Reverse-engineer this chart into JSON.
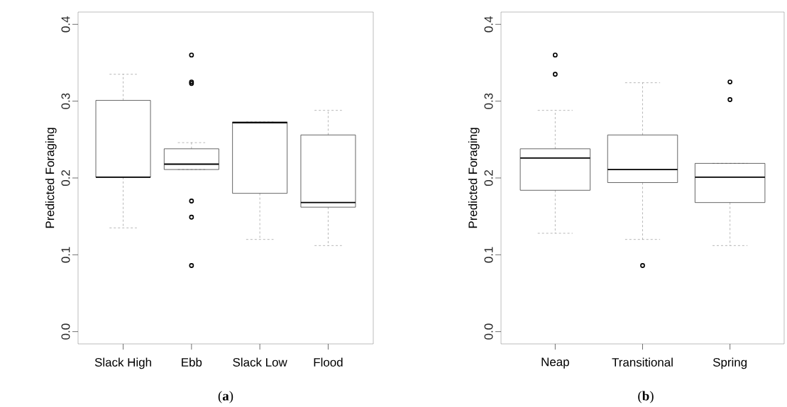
{
  "chart_data": [
    {
      "type": "box",
      "ylabel": "Predicted Foraging",
      "categories": [
        "Slack High",
        "Ebb",
        "Slack Low",
        "Flood"
      ],
      "boxes": [
        {
          "low": 0.135,
          "q1": 0.201,
          "median": 0.201,
          "q3": 0.301,
          "high": 0.335
        },
        {
          "low": 0.211,
          "q1": 0.211,
          "median": 0.218,
          "q3": 0.238,
          "high": 0.246,
          "outliers": [
            0.36,
            0.325,
            0.323,
            0.17,
            0.149,
            0.086
          ]
        },
        {
          "low": 0.12,
          "q1": 0.18,
          "median": 0.272,
          "q3": 0.273,
          "high": 0.273
        },
        {
          "low": 0.112,
          "q1": 0.162,
          "median": 0.168,
          "q3": 0.256,
          "high": 0.288
        }
      ],
      "ylim": [
        -0.016,
        0.416
      ],
      "yticks": [
        {
          "value": 0,
          "label": "0.0"
        },
        0.1,
        0.2,
        0.3,
        0.4
      ],
      "marker": "circle",
      "annotations": [
        "(**a**)"
      ]
    },
    {
      "type": "box",
      "ylabel": "Predicted Foraging",
      "categories": [
        "Neap",
        "Transitional",
        "Spring"
      ],
      "boxes": [
        {
          "low": 0.128,
          "q1": 0.184,
          "median": 0.226,
          "q3": 0.238,
          "high": 0.288,
          "outliers": [
            0.36,
            0.335
          ]
        },
        {
          "low": 0.12,
          "q1": 0.194,
          "median": 0.211,
          "q3": 0.256,
          "high": 0.324,
          "outliers": [
            0.086
          ]
        },
        {
          "low": 0.112,
          "q1": 0.168,
          "median": 0.201,
          "q3": 0.219,
          "high": 0.219,
          "outliers": [
            0.325,
            0.302
          ]
        }
      ],
      "ylim": [
        -0.016,
        0.416
      ],
      "yticks": [
        {
          "value": 0,
          "label": "0.0"
        },
        0.1,
        0.2,
        0.3,
        0.4
      ],
      "marker": "circle",
      "annotations": [
        "(**b**)"
      ]
    }
  ]
}
